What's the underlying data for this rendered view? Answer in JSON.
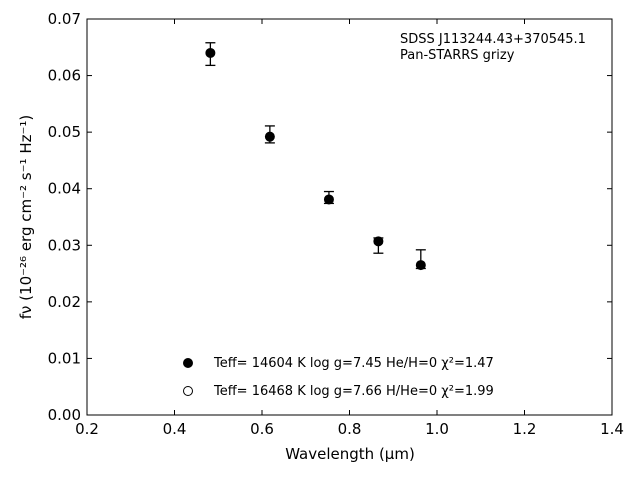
{
  "chart_data": {
    "type": "scatter",
    "title": "",
    "xlabel": "Wavelength (μm)",
    "ylabel": "fν (10⁻²⁶ erg cm⁻² s⁻¹ Hz⁻¹)",
    "xlim": [
      0.2,
      1.4
    ],
    "ylim": [
      0.0,
      0.07
    ],
    "x_ticks": [
      "0.2",
      "0.4",
      "0.6",
      "0.8",
      "1.0",
      "1.2",
      "1.4"
    ],
    "y_ticks": [
      "0.00",
      "0.01",
      "0.02",
      "0.03",
      "0.04",
      "0.05",
      "0.06",
      "0.07"
    ],
    "grid": false,
    "legend_position": "lower-center",
    "annotation": [
      "SDSS J113244.43+370545.1",
      "Pan-STARRS grizy"
    ],
    "series": [
      {
        "name": "Teff= 14604 K  log g=7.45  He/H=0  χ²=1.47",
        "marker": "filled-circle",
        "color": "#000000",
        "points": [
          {
            "x": 0.482,
            "y": 0.064,
            "err_low": 0.0022,
            "err_high": 0.0018
          },
          {
            "x": 0.618,
            "y": 0.0492,
            "err_low": 0.0011,
            "err_high": 0.0019
          },
          {
            "x": 0.753,
            "y": 0.0381,
            "err_low": 0.0007,
            "err_high": 0.0014
          },
          {
            "x": 0.866,
            "y": 0.0307,
            "err_low": 0.0021,
            "err_high": 0.0006
          },
          {
            "x": 0.963,
            "y": 0.0265,
            "err_low": 0.0006,
            "err_high": 0.0027
          }
        ]
      },
      {
        "name": "Teff= 16468 K  log g=7.66  H/He=0  χ²=1.99",
        "marker": "open-circle",
        "color": "#000000",
        "points": []
      }
    ]
  }
}
